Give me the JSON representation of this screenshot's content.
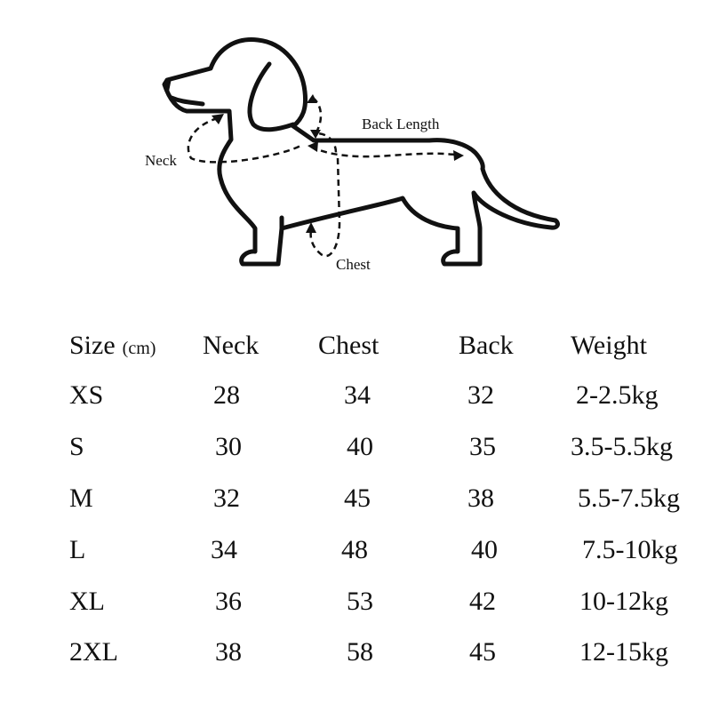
{
  "diagram": {
    "labels": {
      "neck": "Neck",
      "back_length": "Back Length",
      "chest": "Chest"
    }
  },
  "table": {
    "headers": {
      "size": "Size",
      "unit": "(cm)",
      "neck": "Neck",
      "chest": "Chest",
      "back": "Back",
      "weight": "Weight"
    },
    "rows": [
      {
        "size": "XS",
        "neck": "28",
        "chest": "34",
        "back": "32",
        "weight": "2-2.5kg"
      },
      {
        "size": "S",
        "neck": "30",
        "chest": "40",
        "back": "35",
        "weight": "3.5-5.5kg"
      },
      {
        "size": "M",
        "neck": "32",
        "chest": "45",
        "back": "38",
        "weight": "5.5-7.5kg"
      },
      {
        "size": "L",
        "neck": "34",
        "chest": "48",
        "back": "40",
        "weight": "7.5-10kg"
      },
      {
        "size": "XL",
        "neck": "36",
        "chest": "53",
        "back": "42",
        "weight": "10-12kg"
      },
      {
        "size": "2XL",
        "neck": "38",
        "chest": "58",
        "back": "45",
        "weight": "12-15kg"
      }
    ]
  }
}
